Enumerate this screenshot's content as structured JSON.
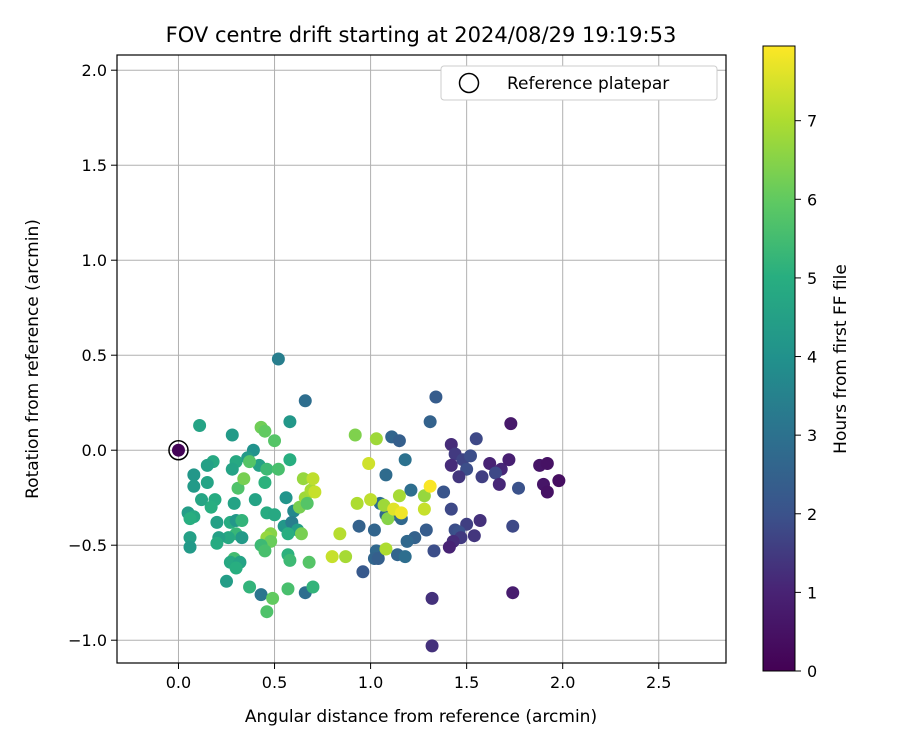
{
  "chart_data": {
    "type": "scatter",
    "title": "FOV centre drift starting at 2024/08/29 19:19:53",
    "xlabel": "Angular distance from reference (arcmin)",
    "ylabel": "Rotation from reference (arcmin)",
    "xlim": [
      -0.32,
      2.85
    ],
    "ylim": [
      -1.12,
      2.08
    ],
    "xticks": [
      "0.0",
      "0.5",
      "1.0",
      "1.5",
      "2.0",
      "2.5"
    ],
    "yticks": [
      "-1.0",
      "-0.5",
      "0.0",
      "0.5",
      "1.0",
      "1.5",
      "2.0"
    ],
    "grid": true,
    "legend": {
      "placement": "top-right",
      "entries": [
        "Reference platepar"
      ]
    },
    "reference_point": {
      "x": 0.0,
      "y": 0.0
    },
    "colorbar": {
      "label": "Hours from first FF file",
      "range": [
        0,
        7.95
      ],
      "ticks": [
        "0",
        "1",
        "2",
        "3",
        "4",
        "5",
        "6",
        "7"
      ],
      "colormap": "viridis"
    },
    "points": [
      {
        "x": 0.0,
        "y": 0.0,
        "h": 0.1
      },
      {
        "x": 1.32,
        "y": -1.03,
        "h": 1.3
      },
      {
        "x": 1.32,
        "y": -0.78,
        "h": 1.3
      },
      {
        "x": 1.74,
        "y": -0.75,
        "h": 0.8
      },
      {
        "x": 1.34,
        "y": 0.28,
        "h": 2.3
      },
      {
        "x": 1.31,
        "y": 0.15,
        "h": 2.5
      },
      {
        "x": 1.73,
        "y": 0.14,
        "h": 0.7
      },
      {
        "x": 1.42,
        "y": 0.03,
        "h": 1.2
      },
      {
        "x": 1.55,
        "y": 0.06,
        "h": 1.8
      },
      {
        "x": 1.44,
        "y": -0.02,
        "h": 1.5
      },
      {
        "x": 1.48,
        "y": -0.05,
        "h": 1.7
      },
      {
        "x": 1.52,
        "y": -0.03,
        "h": 1.9
      },
      {
        "x": 1.62,
        "y": -0.07,
        "h": 1.0
      },
      {
        "x": 1.68,
        "y": -0.1,
        "h": 1.1
      },
      {
        "x": 1.72,
        "y": -0.05,
        "h": 0.9
      },
      {
        "x": 1.88,
        "y": -0.08,
        "h": 0.6
      },
      {
        "x": 1.92,
        "y": -0.07,
        "h": 0.5
      },
      {
        "x": 1.9,
        "y": -0.18,
        "h": 0.6
      },
      {
        "x": 1.98,
        "y": -0.16,
        "h": 0.4
      },
      {
        "x": 1.92,
        "y": -0.22,
        "h": 0.5
      },
      {
        "x": 1.77,
        "y": -0.2,
        "h": 2.0
      },
      {
        "x": 1.65,
        "y": -0.12,
        "h": 1.8
      },
      {
        "x": 1.67,
        "y": -0.18,
        "h": 1.1
      },
      {
        "x": 1.58,
        "y": -0.14,
        "h": 1.6
      },
      {
        "x": 1.5,
        "y": -0.1,
        "h": 1.9
      },
      {
        "x": 1.46,
        "y": -0.14,
        "h": 1.4
      },
      {
        "x": 1.42,
        "y": -0.08,
        "h": 1.2
      },
      {
        "x": 1.38,
        "y": -0.22,
        "h": 2.1
      },
      {
        "x": 1.42,
        "y": -0.31,
        "h": 1.8
      },
      {
        "x": 1.5,
        "y": -0.39,
        "h": 1.6
      },
      {
        "x": 1.57,
        "y": -0.37,
        "h": 1.3
      },
      {
        "x": 1.44,
        "y": -0.42,
        "h": 1.9
      },
      {
        "x": 1.46,
        "y": -0.43,
        "h": 2.0
      },
      {
        "x": 1.54,
        "y": -0.45,
        "h": 1.4
      },
      {
        "x": 1.47,
        "y": -0.46,
        "h": 1.5
      },
      {
        "x": 1.43,
        "y": -0.48,
        "h": 1.2
      },
      {
        "x": 1.41,
        "y": -0.51,
        "h": 1.0
      },
      {
        "x": 1.74,
        "y": -0.4,
        "h": 1.8
      },
      {
        "x": 1.33,
        "y": -0.53,
        "h": 1.9
      },
      {
        "x": 1.29,
        "y": -0.42,
        "h": 2.3
      },
      {
        "x": 1.23,
        "y": -0.46,
        "h": 2.5
      },
      {
        "x": 1.19,
        "y": -0.48,
        "h": 2.7
      },
      {
        "x": 1.14,
        "y": -0.55,
        "h": 2.6
      },
      {
        "x": 1.18,
        "y": -0.56,
        "h": 2.9
      },
      {
        "x": 1.03,
        "y": -0.53,
        "h": 2.7
      },
      {
        "x": 1.02,
        "y": -0.57,
        "h": 2.6
      },
      {
        "x": 1.04,
        "y": -0.57,
        "h": 2.4
      },
      {
        "x": 0.96,
        "y": -0.64,
        "h": 2.2
      },
      {
        "x": 0.94,
        "y": -0.4,
        "h": 2.5
      },
      {
        "x": 1.02,
        "y": -0.42,
        "h": 2.6
      },
      {
        "x": 1.08,
        "y": -0.34,
        "h": 2.7
      },
      {
        "x": 1.14,
        "y": -0.34,
        "h": 2.5
      },
      {
        "x": 1.16,
        "y": -0.36,
        "h": 2.7
      },
      {
        "x": 1.21,
        "y": -0.21,
        "h": 2.9
      },
      {
        "x": 1.08,
        "y": -0.13,
        "h": 2.8
      },
      {
        "x": 1.18,
        "y": -0.05,
        "h": 3.0
      },
      {
        "x": 1.11,
        "y": 0.07,
        "h": 2.6
      },
      {
        "x": 1.15,
        "y": 0.05,
        "h": 2.4
      },
      {
        "x": 1.05,
        "y": -0.28,
        "h": 2.9
      },
      {
        "x": 0.52,
        "y": 0.48,
        "h": 3.4
      },
      {
        "x": 0.66,
        "y": 0.26,
        "h": 2.9
      },
      {
        "x": 0.58,
        "y": 0.15,
        "h": 4.2
      },
      {
        "x": 0.66,
        "y": -0.75,
        "h": 2.9
      },
      {
        "x": 0.43,
        "y": -0.76,
        "h": 3.1
      },
      {
        "x": 0.11,
        "y": 0.13,
        "h": 4.6
      },
      {
        "x": 0.28,
        "y": 0.08,
        "h": 4.3
      },
      {
        "x": 0.43,
        "y": 0.12,
        "h": 6.2
      },
      {
        "x": 0.45,
        "y": 0.1,
        "h": 6.0
      },
      {
        "x": 0.5,
        "y": 0.05,
        "h": 5.8
      },
      {
        "x": 0.39,
        "y": 0.0,
        "h": 4.0
      },
      {
        "x": 0.36,
        "y": -0.04,
        "h": 4.3
      },
      {
        "x": 0.42,
        "y": -0.08,
        "h": 4.5
      },
      {
        "x": 0.58,
        "y": -0.05,
        "h": 5.0
      },
      {
        "x": 0.46,
        "y": -0.1,
        "h": 5.4
      },
      {
        "x": 0.52,
        "y": -0.1,
        "h": 5.6
      },
      {
        "x": 0.3,
        "y": -0.06,
        "h": 4.8
      },
      {
        "x": 0.28,
        "y": -0.1,
        "h": 4.6
      },
      {
        "x": 0.18,
        "y": -0.06,
        "h": 4.8
      },
      {
        "x": 0.15,
        "y": -0.08,
        "h": 4.5
      },
      {
        "x": 0.08,
        "y": -0.13,
        "h": 4.2
      },
      {
        "x": 0.15,
        "y": -0.17,
        "h": 4.6
      },
      {
        "x": 0.08,
        "y": -0.19,
        "h": 4.3
      },
      {
        "x": 0.12,
        "y": -0.26,
        "h": 4.7
      },
      {
        "x": 0.19,
        "y": -0.26,
        "h": 4.9
      },
      {
        "x": 0.17,
        "y": -0.3,
        "h": 5.0
      },
      {
        "x": 0.05,
        "y": -0.33,
        "h": 4.4
      },
      {
        "x": 0.08,
        "y": -0.35,
        "h": 4.8
      },
      {
        "x": 0.06,
        "y": -0.36,
        "h": 5.0
      },
      {
        "x": 0.2,
        "y": -0.38,
        "h": 4.5
      },
      {
        "x": 0.27,
        "y": -0.38,
        "h": 4.9
      },
      {
        "x": 0.3,
        "y": -0.37,
        "h": 4.2
      },
      {
        "x": 0.33,
        "y": -0.37,
        "h": 5.2
      },
      {
        "x": 0.29,
        "y": -0.28,
        "h": 4.6
      },
      {
        "x": 0.31,
        "y": -0.2,
        "h": 5.7
      },
      {
        "x": 0.34,
        "y": -0.15,
        "h": 6.3
      },
      {
        "x": 0.37,
        "y": -0.06,
        "h": 5.8
      },
      {
        "x": 0.4,
        "y": -0.26,
        "h": 4.6
      },
      {
        "x": 0.45,
        "y": -0.17,
        "h": 5.1
      },
      {
        "x": 0.46,
        "y": -0.33,
        "h": 4.9
      },
      {
        "x": 0.5,
        "y": -0.34,
        "h": 4.8
      },
      {
        "x": 0.56,
        "y": -0.25,
        "h": 4.1
      },
      {
        "x": 0.6,
        "y": -0.32,
        "h": 3.7
      },
      {
        "x": 0.63,
        "y": -0.3,
        "h": 6.3
      },
      {
        "x": 0.66,
        "y": -0.25,
        "h": 6.8
      },
      {
        "x": 0.65,
        "y": -0.15,
        "h": 6.7
      },
      {
        "x": 0.69,
        "y": -0.21,
        "h": 6.9
      },
      {
        "x": 0.7,
        "y": -0.15,
        "h": 7.2
      },
      {
        "x": 0.71,
        "y": -0.22,
        "h": 7.3
      },
      {
        "x": 0.67,
        "y": -0.28,
        "h": 5.8
      },
      {
        "x": 0.55,
        "y": -0.4,
        "h": 4.2
      },
      {
        "x": 0.59,
        "y": -0.38,
        "h": 3.4
      },
      {
        "x": 0.62,
        "y": -0.42,
        "h": 4.4
      },
      {
        "x": 0.64,
        "y": -0.44,
        "h": 6.3
      },
      {
        "x": 0.57,
        "y": -0.44,
        "h": 5.0
      },
      {
        "x": 0.48,
        "y": -0.44,
        "h": 6.5
      },
      {
        "x": 0.46,
        "y": -0.46,
        "h": 6.7
      },
      {
        "x": 0.48,
        "y": -0.48,
        "h": 6.1
      },
      {
        "x": 0.43,
        "y": -0.5,
        "h": 5.4
      },
      {
        "x": 0.45,
        "y": -0.53,
        "h": 5.6
      },
      {
        "x": 0.3,
        "y": -0.44,
        "h": 5.3
      },
      {
        "x": 0.33,
        "y": -0.46,
        "h": 4.3
      },
      {
        "x": 0.26,
        "y": -0.46,
        "h": 4.8
      },
      {
        "x": 0.21,
        "y": -0.46,
        "h": 4.5
      },
      {
        "x": 0.2,
        "y": -0.49,
        "h": 4.9
      },
      {
        "x": 0.06,
        "y": -0.46,
        "h": 4.5
      },
      {
        "x": 0.06,
        "y": -0.51,
        "h": 4.3
      },
      {
        "x": 0.29,
        "y": -0.57,
        "h": 5.5
      },
      {
        "x": 0.27,
        "y": -0.59,
        "h": 4.8
      },
      {
        "x": 0.32,
        "y": -0.59,
        "h": 4.6
      },
      {
        "x": 0.3,
        "y": -0.62,
        "h": 5.0
      },
      {
        "x": 0.57,
        "y": -0.55,
        "h": 5.1
      },
      {
        "x": 0.58,
        "y": -0.58,
        "h": 5.4
      },
      {
        "x": 0.68,
        "y": -0.59,
        "h": 5.8
      },
      {
        "x": 0.37,
        "y": -0.72,
        "h": 5.2
      },
      {
        "x": 0.57,
        "y": -0.73,
        "h": 5.6
      },
      {
        "x": 0.7,
        "y": -0.72,
        "h": 5.2
      },
      {
        "x": 0.25,
        "y": -0.69,
        "h": 4.4
      },
      {
        "x": 0.49,
        "y": -0.78,
        "h": 6.0
      },
      {
        "x": 0.46,
        "y": -0.85,
        "h": 5.7
      },
      {
        "x": 0.92,
        "y": 0.08,
        "h": 6.4
      },
      {
        "x": 1.03,
        "y": 0.06,
        "h": 6.8
      },
      {
        "x": 0.99,
        "y": -0.07,
        "h": 7.4
      },
      {
        "x": 0.93,
        "y": -0.28,
        "h": 7.0
      },
      {
        "x": 1.0,
        "y": -0.26,
        "h": 7.2
      },
      {
        "x": 1.07,
        "y": -0.29,
        "h": 6.8
      },
      {
        "x": 1.09,
        "y": -0.36,
        "h": 6.5
      },
      {
        "x": 1.15,
        "y": -0.24,
        "h": 6.9
      },
      {
        "x": 1.12,
        "y": -0.31,
        "h": 7.6
      },
      {
        "x": 1.16,
        "y": -0.33,
        "h": 7.8
      },
      {
        "x": 1.28,
        "y": -0.24,
        "h": 6.7
      },
      {
        "x": 1.31,
        "y": -0.19,
        "h": 7.9
      },
      {
        "x": 1.28,
        "y": -0.31,
        "h": 7.3
      },
      {
        "x": 0.8,
        "y": -0.56,
        "h": 7.3
      },
      {
        "x": 0.87,
        "y": -0.56,
        "h": 6.9
      },
      {
        "x": 0.84,
        "y": -0.44,
        "h": 7.1
      },
      {
        "x": 1.08,
        "y": -0.52,
        "h": 7.0
      }
    ]
  }
}
